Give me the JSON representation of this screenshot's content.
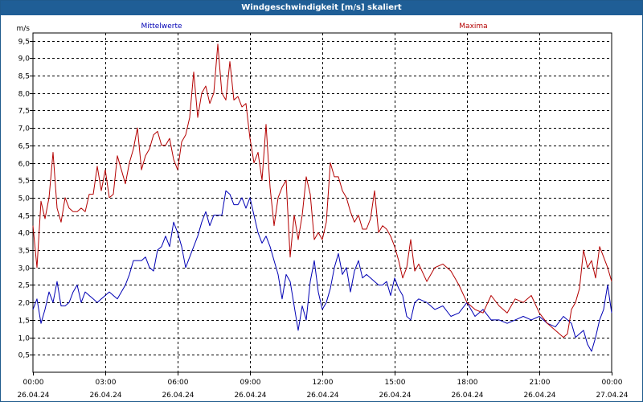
{
  "window": {
    "title": "Windgeschwindigkeit [m/s] skaliert"
  },
  "colors": {
    "titlebar": "#1f5e96",
    "mean": "#0000b4",
    "max": "#b40000",
    "grid": "#000000"
  },
  "chart_data": {
    "type": "line",
    "title": "Windgeschwindigkeit [m/s] skaliert",
    "ylabel": "m/s",
    "xlabel": "",
    "ylim": [
      0,
      9.72
    ],
    "xlim_hours": [
      0,
      24
    ],
    "grid": true,
    "legend": "top",
    "y_ticks": [
      "0,5",
      "1,0",
      "1,5",
      "2,0",
      "2,5",
      "3,0",
      "3,5",
      "4,0",
      "4,5",
      "5,0",
      "5,5",
      "6,0",
      "6,5",
      "7,0",
      "7,5",
      "8,0",
      "8,5",
      "9,0",
      "9,5"
    ],
    "y_tick_values": [
      0.5,
      1.0,
      1.5,
      2.0,
      2.5,
      3.0,
      3.5,
      4.0,
      4.5,
      5.0,
      5.5,
      6.0,
      6.5,
      7.0,
      7.5,
      8.0,
      8.5,
      9.0,
      9.5
    ],
    "x_ticks": [
      {
        "time": "00:00",
        "date": "26.04.24"
      },
      {
        "time": "03:00",
        "date": "26.04.24"
      },
      {
        "time": "06:00",
        "date": "26.04.24"
      },
      {
        "time": "09:00",
        "date": "26.04.24"
      },
      {
        "time": "12:00",
        "date": "26.04.24"
      },
      {
        "time": "15:00",
        "date": "26.04.24"
      },
      {
        "time": "18:00",
        "date": "26.04.24"
      },
      {
        "time": "21:00",
        "date": "26.04.24"
      },
      {
        "time": "00:00",
        "date": "27.04.24"
      }
    ],
    "series": [
      {
        "name": "Mittelwerte",
        "color": "#0000b4",
        "x": [
          "00:00",
          "00:10",
          "00:20",
          "00:30",
          "00:40",
          "00:50",
          "01:00",
          "01:10",
          "01:20",
          "01:30",
          "01:40",
          "01:50",
          "02:00",
          "02:10",
          "02:20",
          "02:30",
          "02:40",
          "02:50",
          "03:00",
          "03:10",
          "03:20",
          "03:30",
          "03:40",
          "03:50",
          "04:00",
          "04:10",
          "04:20",
          "04:30",
          "04:40",
          "04:50",
          "05:00",
          "05:10",
          "05:20",
          "05:30",
          "05:40",
          "05:50",
          "06:00",
          "06:10",
          "06:20",
          "06:30",
          "06:40",
          "06:50",
          "07:00",
          "07:10",
          "07:20",
          "07:30",
          "07:40",
          "07:50",
          "08:00",
          "08:10",
          "08:20",
          "08:30",
          "08:40",
          "08:50",
          "09:00",
          "09:10",
          "09:20",
          "09:30",
          "09:40",
          "09:50",
          "10:00",
          "10:10",
          "10:20",
          "10:30",
          "10:40",
          "10:50",
          "11:00",
          "11:10",
          "11:20",
          "11:30",
          "11:40",
          "11:50",
          "12:00",
          "12:10",
          "12:20",
          "12:30",
          "12:40",
          "12:50",
          "13:00",
          "13:10",
          "13:20",
          "13:30",
          "13:40",
          "13:50",
          "14:00",
          "14:10",
          "14:20",
          "14:30",
          "14:40",
          "14:50",
          "15:00",
          "15:10",
          "15:20",
          "15:30",
          "15:40",
          "15:50",
          "16:00",
          "16:20",
          "16:40",
          "17:00",
          "17:20",
          "17:40",
          "18:00",
          "18:20",
          "18:40",
          "19:00",
          "19:20",
          "19:40",
          "20:00",
          "20:20",
          "20:40",
          "21:00",
          "21:20",
          "21:40",
          "22:00",
          "22:10",
          "22:20",
          "22:30",
          "22:40",
          "22:50",
          "23:00",
          "23:10",
          "23:20",
          "23:30",
          "23:40",
          "23:50",
          "24:00"
        ],
        "y": [
          1.8,
          2.1,
          1.4,
          1.8,
          2.3,
          2.0,
          2.6,
          1.9,
          1.9,
          2.0,
          2.3,
          2.5,
          2.0,
          2.3,
          2.2,
          2.1,
          2.0,
          2.1,
          2.2,
          2.3,
          2.2,
          2.1,
          2.3,
          2.5,
          2.8,
          3.2,
          3.2,
          3.2,
          3.3,
          3.0,
          2.9,
          3.5,
          3.6,
          3.9,
          3.6,
          4.3,
          4.0,
          3.6,
          3.0,
          3.3,
          3.6,
          3.9,
          4.3,
          4.6,
          4.2,
          4.5,
          4.5,
          4.5,
          5.2,
          5.1,
          4.8,
          4.8,
          5.0,
          4.7,
          5.0,
          4.5,
          4.0,
          3.7,
          3.9,
          3.6,
          3.2,
          2.8,
          2.1,
          2.8,
          2.6,
          1.9,
          1.2,
          1.9,
          1.5,
          2.6,
          3.2,
          2.3,
          1.8,
          2.0,
          2.4,
          3.0,
          3.4,
          2.8,
          3.0,
          2.3,
          2.9,
          3.2,
          2.7,
          2.8,
          2.7,
          2.6,
          2.5,
          2.5,
          2.6,
          2.2,
          2.7,
          2.4,
          2.2,
          1.6,
          1.5,
          2.0,
          2.1,
          2.0,
          1.8,
          1.9,
          1.6,
          1.7,
          2.0,
          1.6,
          1.8,
          1.5,
          1.5,
          1.4,
          1.5,
          1.6,
          1.5,
          1.6,
          1.4,
          1.3,
          1.6,
          1.5,
          1.4,
          1.0,
          1.1,
          1.2,
          0.8,
          0.6,
          1.0,
          1.5,
          1.8,
          2.5,
          1.7
        ]
      },
      {
        "name": "Maxima",
        "color": "#b40000",
        "x": [
          "00:00",
          "00:10",
          "00:20",
          "00:30",
          "00:40",
          "00:50",
          "01:00",
          "01:10",
          "01:20",
          "01:30",
          "01:40",
          "01:50",
          "02:00",
          "02:10",
          "02:20",
          "02:30",
          "02:40",
          "02:50",
          "03:00",
          "03:10",
          "03:20",
          "03:30",
          "03:40",
          "03:50",
          "04:00",
          "04:10",
          "04:20",
          "04:30",
          "04:40",
          "04:50",
          "05:00",
          "05:10",
          "05:20",
          "05:30",
          "05:40",
          "05:50",
          "06:00",
          "06:10",
          "06:20",
          "06:30",
          "06:40",
          "06:50",
          "07:00",
          "07:10",
          "07:20",
          "07:30",
          "07:40",
          "07:50",
          "08:00",
          "08:10",
          "08:20",
          "08:30",
          "08:40",
          "08:50",
          "09:00",
          "09:10",
          "09:20",
          "09:30",
          "09:40",
          "09:50",
          "10:00",
          "10:10",
          "10:20",
          "10:30",
          "10:40",
          "10:50",
          "11:00",
          "11:10",
          "11:20",
          "11:30",
          "11:40",
          "11:50",
          "12:00",
          "12:10",
          "12:20",
          "12:30",
          "12:40",
          "12:50",
          "13:00",
          "13:10",
          "13:20",
          "13:30",
          "13:40",
          "13:50",
          "14:00",
          "14:10",
          "14:20",
          "14:30",
          "14:40",
          "14:50",
          "15:00",
          "15:10",
          "15:20",
          "15:30",
          "15:40",
          "15:50",
          "16:00",
          "16:20",
          "16:40",
          "17:00",
          "17:20",
          "17:40",
          "18:00",
          "18:20",
          "18:40",
          "19:00",
          "19:20",
          "19:40",
          "20:00",
          "20:20",
          "20:40",
          "21:00",
          "21:20",
          "21:40",
          "22:00",
          "22:10",
          "22:20",
          "22:30",
          "22:40",
          "22:50",
          "23:00",
          "23:10",
          "23:20",
          "23:30",
          "23:40",
          "23:50",
          "24:00"
        ],
        "y": [
          4.2,
          3.0,
          4.9,
          4.4,
          5.0,
          6.3,
          4.7,
          4.3,
          5.0,
          4.7,
          4.6,
          4.6,
          4.7,
          4.6,
          5.1,
          5.1,
          5.9,
          5.2,
          5.8,
          5.0,
          5.1,
          6.2,
          5.8,
          5.4,
          6.0,
          6.4,
          7.0,
          5.8,
          6.2,
          6.4,
          6.8,
          6.9,
          6.5,
          6.5,
          6.7,
          6.1,
          5.8,
          6.6,
          6.8,
          7.3,
          8.6,
          7.3,
          8.0,
          8.2,
          7.7,
          8.0,
          9.4,
          8.0,
          7.8,
          8.9,
          7.8,
          7.9,
          7.6,
          7.7,
          6.7,
          6.0,
          6.3,
          5.5,
          7.1,
          5.3,
          4.2,
          5.0,
          5.3,
          5.5,
          3.3,
          4.5,
          3.8,
          4.5,
          5.6,
          5.1,
          3.8,
          4.0,
          3.8,
          4.3,
          6.0,
          5.6,
          5.6,
          5.2,
          5.0,
          4.6,
          4.3,
          4.5,
          4.1,
          4.1,
          4.4,
          5.2,
          4.0,
          4.2,
          4.1,
          3.9,
          3.6,
          3.2,
          2.7,
          3.0,
          3.8,
          2.9,
          3.1,
          2.6,
          3.0,
          3.1,
          2.9,
          2.5,
          2.0,
          1.8,
          1.7,
          2.2,
          1.9,
          1.7,
          2.1,
          2.0,
          2.2,
          1.7,
          1.4,
          1.2,
          1.0,
          1.1,
          1.8,
          2.0,
          2.4,
          3.5,
          3.0,
          3.2,
          2.7,
          3.6,
          3.3,
          3.0,
          2.6
        ]
      }
    ]
  }
}
